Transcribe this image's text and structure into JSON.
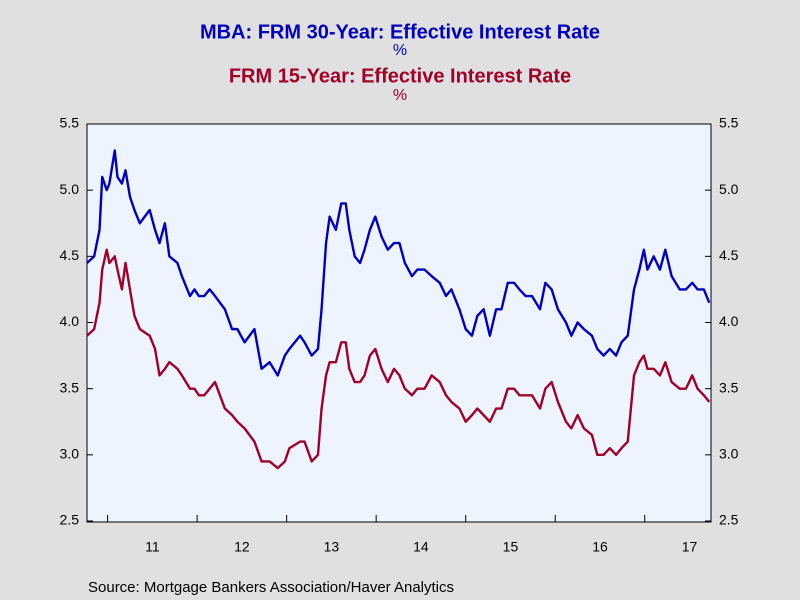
{
  "chart_data": {
    "type": "line",
    "source": "Source:  Mortgage Bankers Association/Haver Analytics",
    "x": [
      2010.77,
      2010.85,
      2010.91,
      2010.94,
      2010.99,
      2011.02,
      2011.08,
      2011.11,
      2011.16,
      2011.2,
      2011.25,
      2011.3,
      2011.36,
      2011.47,
      2011.53,
      2011.58,
      2011.64,
      2011.69,
      2011.78,
      2011.83,
      2011.92,
      2011.97,
      2012.02,
      2012.08,
      2012.14,
      2012.2,
      2012.31,
      2012.39,
      2012.45,
      2012.53,
      2012.64,
      2012.72,
      2012.81,
      2012.9,
      2012.98,
      2013.03,
      2013.15,
      2013.2,
      2013.28,
      2013.35,
      2013.39,
      2013.44,
      2013.48,
      2013.55,
      2013.61,
      2013.66,
      2013.7,
      2013.76,
      2013.82,
      2013.87,
      2013.93,
      2013.99,
      2014.06,
      2014.13,
      2014.2,
      2014.26,
      2014.32,
      2014.4,
      2014.46,
      2014.54,
      2014.62,
      2014.71,
      2014.78,
      2014.84,
      2014.93,
      2015.0,
      2015.07,
      2015.13,
      2015.2,
      2015.27,
      2015.34,
      2015.4,
      2015.47,
      2015.54,
      2015.6,
      2015.67,
      2015.74,
      2015.83,
      2015.89,
      2015.96,
      2016.03,
      2016.12,
      2016.18,
      2016.25,
      2016.32,
      2016.41,
      2016.47,
      2016.54,
      2016.61,
      2016.68,
      2016.74,
      2016.81,
      2016.88,
      2016.94,
      2016.99,
      2017.03,
      2017.1,
      2017.17,
      2017.23,
      2017.3,
      2017.39,
      2017.46,
      2017.53,
      2017.59,
      2017.66,
      2017.72
    ],
    "series": [
      {
        "name": "MBA: FRM 30-Year: Effective Interest Rate",
        "unit": "%",
        "color": "#0000c0",
        "values": [
          4.45,
          4.5,
          4.7,
          5.1,
          5.0,
          5.05,
          5.3,
          5.1,
          5.05,
          5.15,
          4.95,
          4.85,
          4.75,
          4.85,
          4.7,
          4.6,
          4.75,
          4.5,
          4.45,
          4.35,
          4.2,
          4.25,
          4.2,
          4.2,
          4.25,
          4.2,
          4.1,
          3.95,
          3.95,
          3.85,
          3.95,
          3.65,
          3.7,
          3.6,
          3.75,
          3.8,
          3.9,
          3.85,
          3.75,
          3.8,
          4.1,
          4.6,
          4.8,
          4.7,
          4.9,
          4.9,
          4.7,
          4.5,
          4.45,
          4.55,
          4.7,
          4.8,
          4.65,
          4.55,
          4.6,
          4.6,
          4.45,
          4.35,
          4.4,
          4.4,
          4.35,
          4.3,
          4.2,
          4.25,
          4.1,
          3.95,
          3.9,
          4.05,
          4.1,
          3.9,
          4.1,
          4.1,
          4.3,
          4.3,
          4.25,
          4.2,
          4.2,
          4.1,
          4.3,
          4.25,
          4.1,
          4.0,
          3.9,
          4.0,
          3.95,
          3.9,
          3.8,
          3.75,
          3.8,
          3.75,
          3.85,
          3.9,
          4.25,
          4.4,
          4.55,
          4.4,
          4.5,
          4.4,
          4.55,
          4.35,
          4.25,
          4.25,
          4.3,
          4.25,
          4.25,
          4.15
        ]
      },
      {
        "name": "FRM 15-Year: Effective Interest Rate",
        "unit": "%",
        "color": "#a0002a",
        "values": [
          3.9,
          3.95,
          4.15,
          4.4,
          4.55,
          4.45,
          4.5,
          4.4,
          4.25,
          4.45,
          4.25,
          4.05,
          3.95,
          3.9,
          3.8,
          3.6,
          3.65,
          3.7,
          3.65,
          3.6,
          3.5,
          3.5,
          3.45,
          3.45,
          3.5,
          3.55,
          3.35,
          3.3,
          3.25,
          3.2,
          3.1,
          2.95,
          2.95,
          2.9,
          2.95,
          3.05,
          3.1,
          3.1,
          2.95,
          3.0,
          3.35,
          3.6,
          3.7,
          3.7,
          3.85,
          3.85,
          3.65,
          3.55,
          3.55,
          3.6,
          3.75,
          3.8,
          3.65,
          3.55,
          3.65,
          3.6,
          3.5,
          3.45,
          3.5,
          3.5,
          3.6,
          3.55,
          3.45,
          3.4,
          3.35,
          3.25,
          3.3,
          3.35,
          3.3,
          3.25,
          3.35,
          3.35,
          3.5,
          3.5,
          3.45,
          3.45,
          3.45,
          3.35,
          3.5,
          3.55,
          3.4,
          3.25,
          3.2,
          3.3,
          3.2,
          3.15,
          3.0,
          3.0,
          3.05,
          3.0,
          3.05,
          3.1,
          3.6,
          3.7,
          3.75,
          3.65,
          3.65,
          3.6,
          3.7,
          3.55,
          3.5,
          3.5,
          3.6,
          3.5,
          3.45,
          3.4
        ]
      }
    ],
    "xlim": [
      2010.77,
      2017.74
    ],
    "xticks": [
      2011,
      2012,
      2013,
      2014,
      2015,
      2016,
      2017
    ],
    "xtick_labels": [
      {
        "value": 2011.5,
        "label": "11"
      },
      {
        "value": 2012.5,
        "label": "12"
      },
      {
        "value": 2013.5,
        "label": "13"
      },
      {
        "value": 2014.5,
        "label": "14"
      },
      {
        "value": 2015.5,
        "label": "15"
      },
      {
        "value": 2016.5,
        "label": "16"
      },
      {
        "value": 2017.5,
        "label": "17"
      }
    ],
    "ylim": [
      2.5,
      5.5
    ],
    "yticks": [
      {
        "value": 2.5,
        "label": "2.5"
      },
      {
        "value": 3,
        "label": "3.0"
      },
      {
        "value": 3.5,
        "label": "3.5"
      },
      {
        "value": 4,
        "label": "4.0"
      },
      {
        "value": 4.5,
        "label": "4.5"
      },
      {
        "value": 5,
        "label": "5.0"
      },
      {
        "value": 5.5,
        "label": "5.5"
      }
    ]
  }
}
